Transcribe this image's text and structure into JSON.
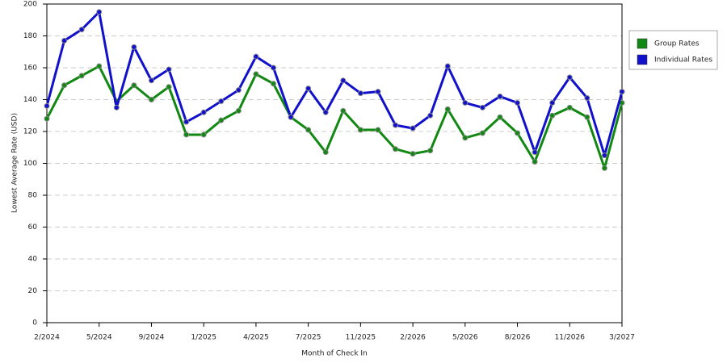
{
  "chart_data": {
    "type": "line",
    "x_label": "Month of Check In",
    "y_label": "Lowest Average Rate (USD)",
    "categories": [
      "2/2024",
      null,
      null,
      "5/2024",
      null,
      null,
      "9/2024",
      null,
      null,
      "1/2025",
      null,
      null,
      "4/2025",
      null,
      null,
      "7/2025",
      null,
      null,
      "11/2025",
      null,
      null,
      "2/2026",
      null,
      null,
      "5/2026",
      null,
      null,
      "8/2026",
      null,
      null,
      "11/2026",
      null,
      null,
      "3/2027"
    ],
    "series": [
      {
        "name": "Group Rates",
        "color": "#118811",
        "values": [
          128,
          149,
          155,
          161,
          139,
          149,
          140,
          148,
          118,
          118,
          127,
          133,
          156,
          150,
          129,
          121,
          107,
          133,
          121,
          121,
          109,
          106,
          108,
          134,
          116,
          119,
          129,
          119,
          101,
          130,
          135,
          129,
          97,
          138
        ]
      },
      {
        "name": "Individual Rates",
        "color": "#1111cc",
        "values": [
          136,
          177,
          184,
          195,
          135,
          173,
          152,
          159,
          126,
          132,
          139,
          146,
          167,
          160,
          129,
          147,
          132,
          152,
          144,
          145,
          124,
          122,
          130,
          161,
          138,
          135,
          142,
          138,
          107,
          138,
          154,
          141,
          105,
          145
        ]
      }
    ],
    "ylim": [
      0,
      200
    ],
    "yticks": [
      0,
      20,
      40,
      60,
      80,
      100,
      120,
      140,
      160,
      180,
      200
    ],
    "grid": true
  }
}
